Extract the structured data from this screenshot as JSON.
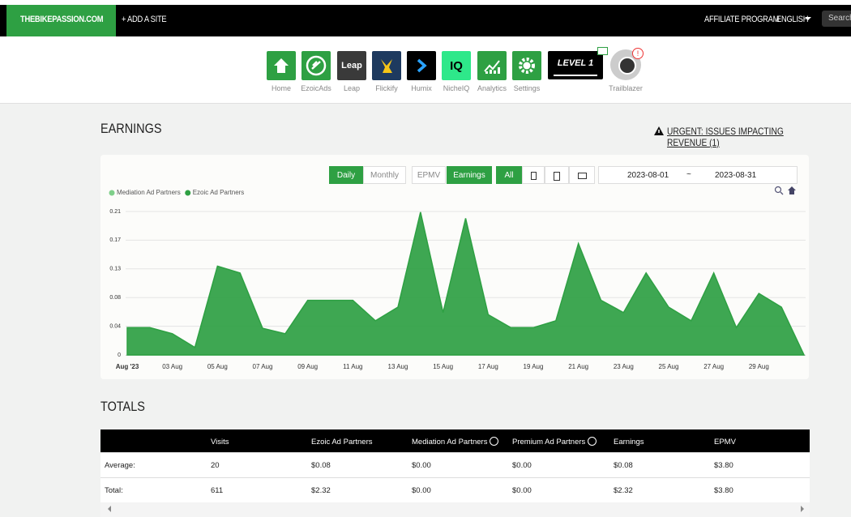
{
  "nav": {
    "logo": "THEBIKEPASSION.COM",
    "add_site": "+ ADD A SITE",
    "affiliate": "AFFILIATE PROGRAM",
    "language": "ENGLISH",
    "search": "Search"
  },
  "apps": [
    {
      "label": "Home"
    },
    {
      "label": "EzoicAds"
    },
    {
      "label": "Leap",
      "icon_text": "Leap"
    },
    {
      "label": "Flickify"
    },
    {
      "label": "Humix"
    },
    {
      "label": "NicheIQ",
      "icon_text": "IQ"
    },
    {
      "label": "Analytics"
    },
    {
      "label": "Settings"
    }
  ],
  "level": {
    "text": "LEVEL 1",
    "label": "Trailblazer",
    "badge": "!"
  },
  "earnings": {
    "title": "EARNINGS",
    "alert": "URGENT: ISSUES IMPACTING REVENUE (1)"
  },
  "controls": {
    "daily": "Daily",
    "monthly": "Monthly",
    "epmv": "EPMV",
    "earnings": "Earnings",
    "all": "All",
    "date_start": "2023-08-01",
    "date_sep": "~",
    "date_end": "2023-08-31"
  },
  "chart_data": {
    "type": "area",
    "categories": [
      "Aug '23",
      null,
      "03 Aug",
      null,
      "05 Aug",
      null,
      "07 Aug",
      null,
      "09 Aug",
      null,
      "11 Aug",
      null,
      "13 Aug",
      null,
      "15 Aug",
      null,
      "17 Aug",
      null,
      "19 Aug",
      null,
      "21 Aug",
      null,
      "23 Aug",
      null,
      "25 Aug",
      null,
      "27 Aug",
      null,
      "29 Aug",
      null,
      null
    ],
    "series": [
      {
        "name": "Mediation Ad Partners",
        "color": "#7fcf8a",
        "values": [
          0,
          0,
          0,
          0,
          0,
          0,
          0,
          0,
          0,
          0,
          0,
          0,
          0,
          0,
          0,
          0,
          0,
          0,
          0,
          0,
          0,
          0,
          0,
          0,
          0,
          0,
          0,
          0,
          0,
          0,
          0
        ]
      },
      {
        "name": "Ezoic Ad Partners",
        "color": "#2ea043",
        "values": [
          0.04,
          0.04,
          0.031,
          0.011,
          0.13,
          0.12,
          0.039,
          0.031,
          0.08,
          0.08,
          0.08,
          0.05,
          0.07,
          0.209,
          0.062,
          0.2,
          0.059,
          0.04,
          0.04,
          0.05,
          0.163,
          0.08,
          0.062,
          0.12,
          0.07,
          0.05,
          0.12,
          0.04,
          0.09,
          0.07,
          0
        ]
      }
    ],
    "ylim": [
      0,
      0.21
    ],
    "yticks": [
      0,
      {
        "value": 0.042,
        "label": "0.04"
      },
      {
        "value": 0.084,
        "label": "0.08"
      },
      {
        "value": 0.126,
        "label": "0.13"
      },
      {
        "value": 0.168,
        "label": "0.17"
      },
      0.21
    ],
    "grid": true,
    "legend": "top-left"
  },
  "totals": {
    "title": "TOTALS",
    "header": [
      "Visits",
      "Ezoic Ad Partners",
      "Mediation Ad Partners",
      "Premium Ad Partners",
      "Earnings",
      "EPMV"
    ],
    "rows": [
      {
        "label": "Average:",
        "cells": [
          "20",
          "$0.08",
          "$0.00",
          "$0.00",
          "$0.08",
          "$3.80"
        ]
      },
      {
        "label": "Total:",
        "cells": [
          "611",
          "$2.32",
          "$0.00",
          "$0.00",
          "$2.32",
          "$3.80"
        ]
      }
    ]
  }
}
